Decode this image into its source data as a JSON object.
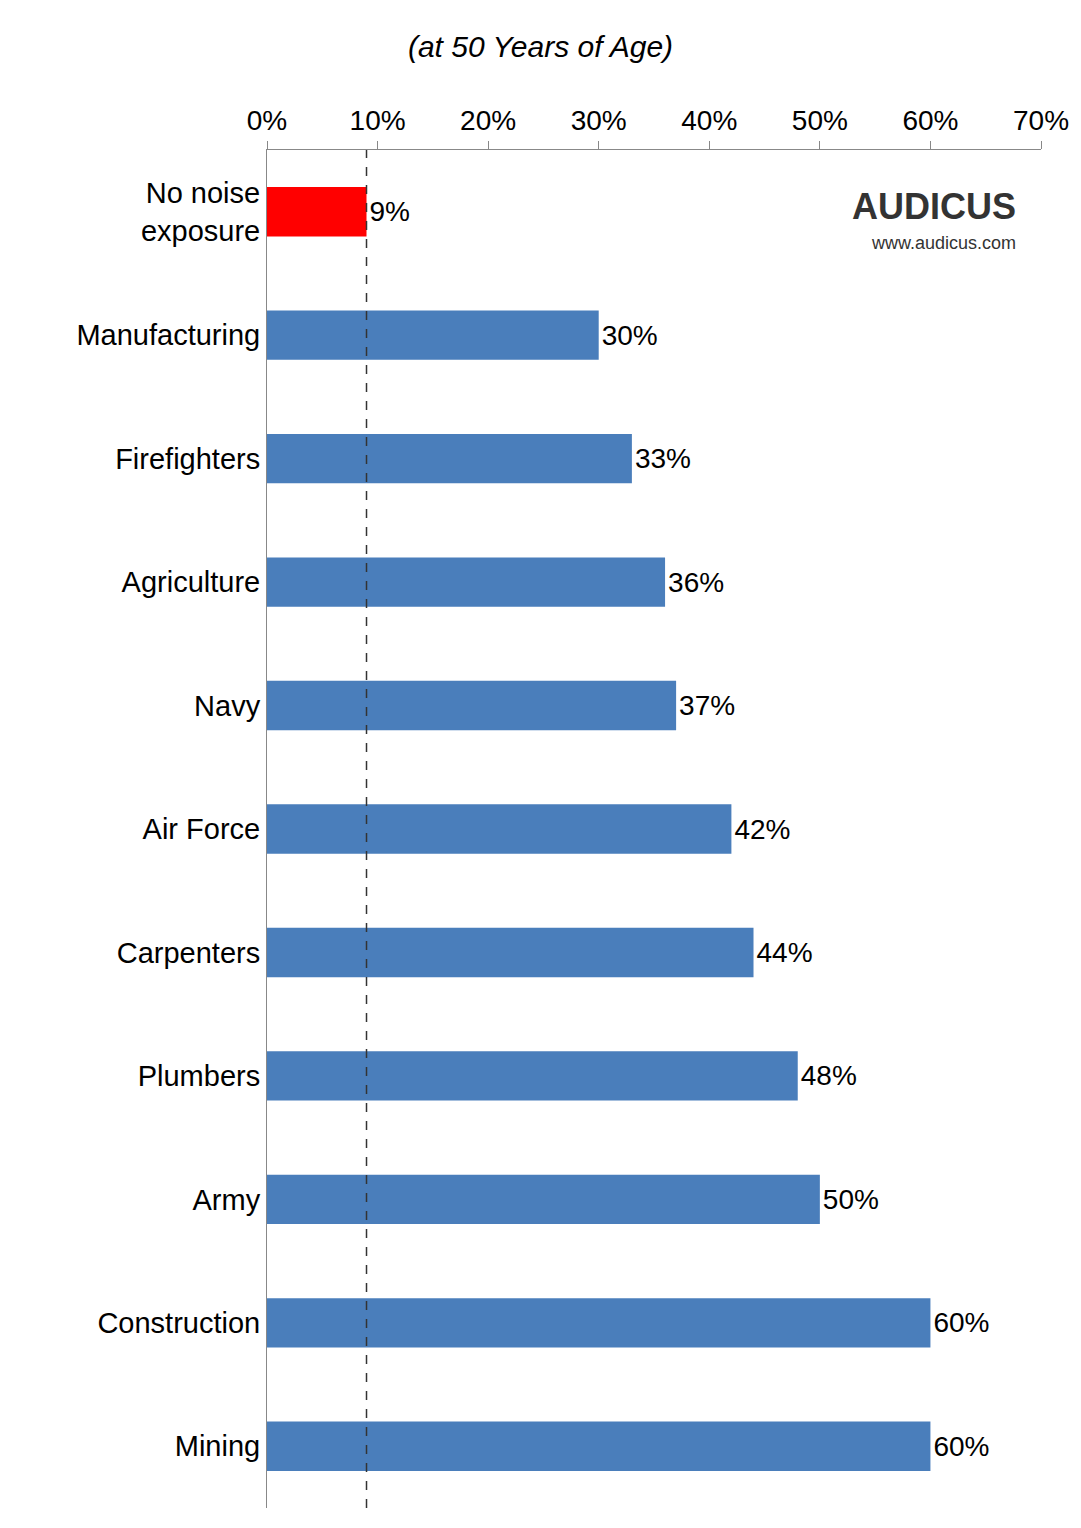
{
  "chart_data": {
    "type": "bar",
    "orientation": "horizontal",
    "subtitle": "(at 50 Years of Age)",
    "annotations": [
      {
        "text": "AUDICUS"
      },
      {
        "text": "www.audicus.com"
      }
    ],
    "categories": [
      "No noise exposure",
      "Manufacturing",
      "Firefighters",
      "Agriculture",
      "Navy",
      "Air Force",
      "Carpenters",
      "Plumbers",
      "Army",
      "Construction",
      "Mining"
    ],
    "values": [
      9,
      30,
      33,
      36,
      37,
      42,
      44,
      48,
      50,
      60,
      60
    ],
    "value_labels": [
      "9%",
      "30%",
      "33%",
      "36%",
      "37%",
      "42%",
      "44%",
      "48%",
      "50%",
      "60%",
      "60%"
    ],
    "colors": [
      "#ff0000",
      "#4a7ebb",
      "#4a7ebb",
      "#4a7ebb",
      "#4a7ebb",
      "#4a7ebb",
      "#4a7ebb",
      "#4a7ebb",
      "#4a7ebb",
      "#4a7ebb",
      "#4a7ebb"
    ],
    "reference_line": 9,
    "data_labels": true,
    "grid": false,
    "xlim": [
      0,
      70
    ],
    "xticks": [
      {
        "value": 0,
        "label": "0%"
      },
      {
        "value": 10,
        "label": "10%"
      },
      {
        "value": 20,
        "label": "20%"
      },
      {
        "value": 30,
        "label": "30%"
      },
      {
        "value": 40,
        "label": "40%"
      },
      {
        "value": 50,
        "label": "50%"
      },
      {
        "value": 60,
        "label": "60%"
      },
      {
        "value": 70,
        "label": "70%"
      }
    ]
  }
}
